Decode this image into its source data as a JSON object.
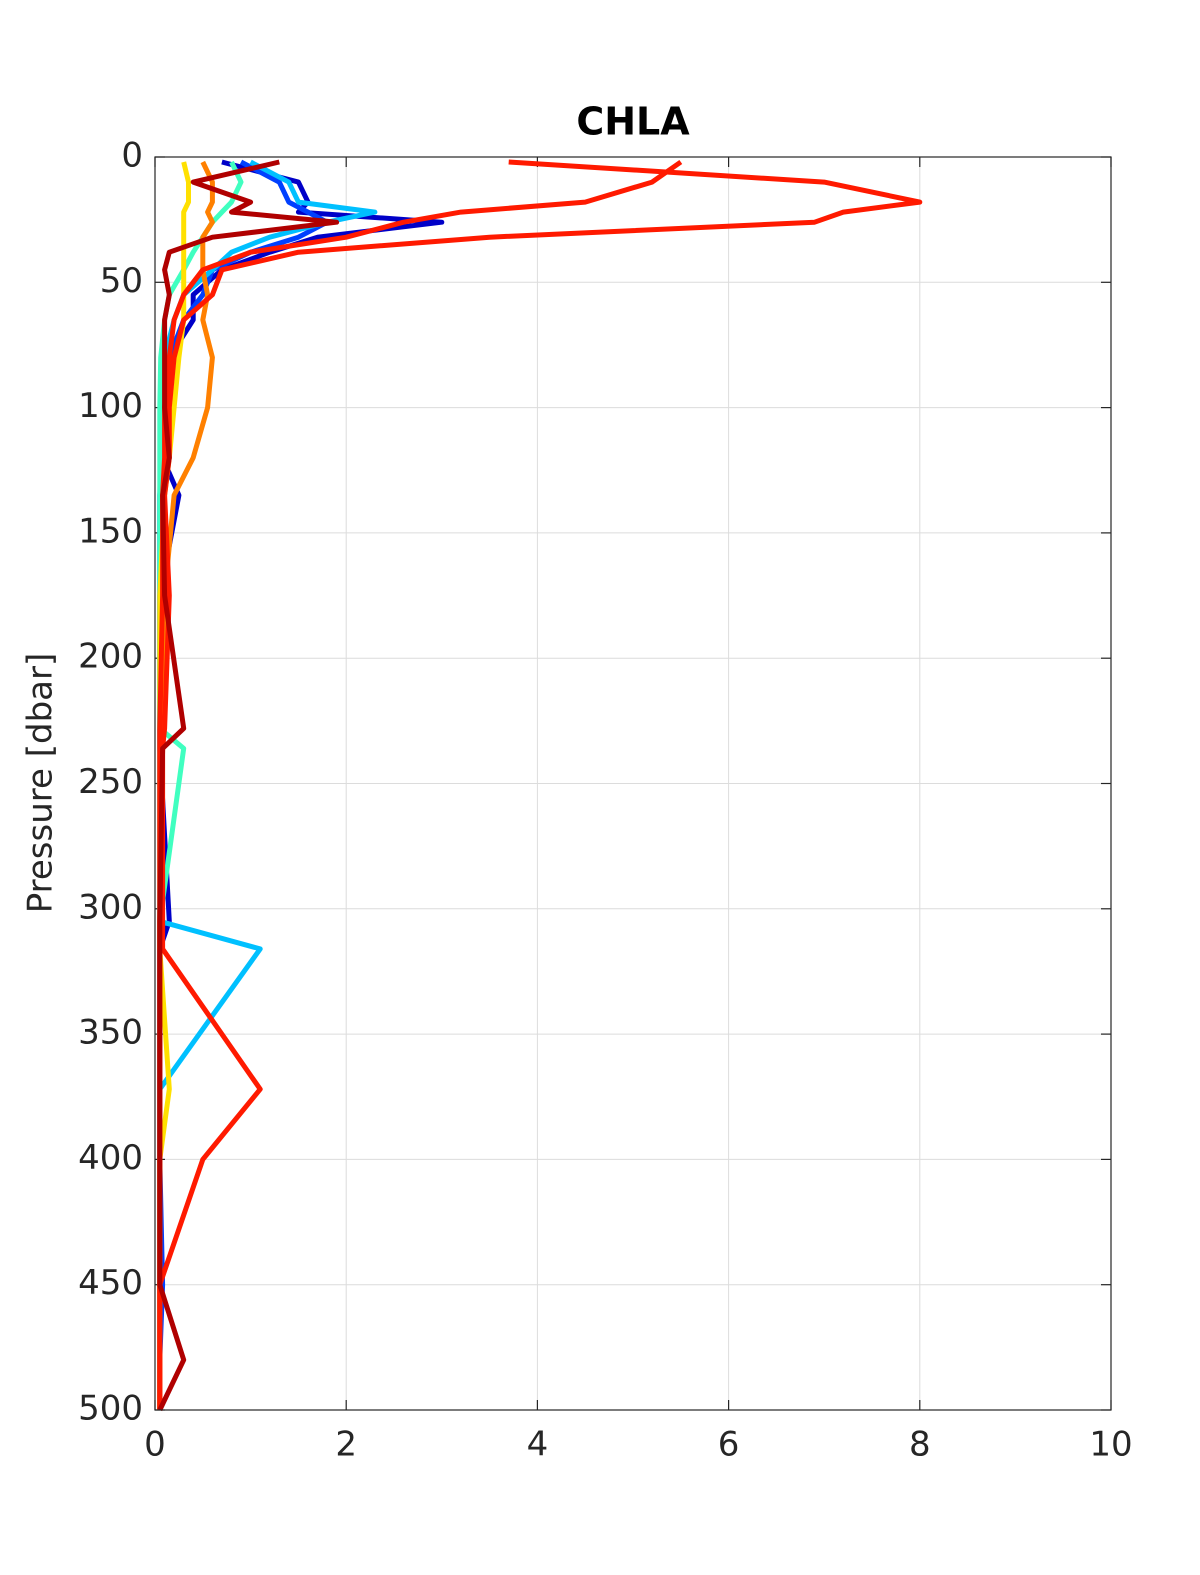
{
  "chart_data": {
    "type": "line",
    "title": "CHLA",
    "ylabel": "Pressure [dbar]",
    "xlim": [
      0,
      10
    ],
    "xticks": [
      0,
      2,
      4,
      6,
      8,
      10
    ],
    "ylim": [
      0,
      500
    ],
    "yticks": [
      0,
      50,
      100,
      150,
      200,
      250,
      300,
      350,
      400,
      450,
      500
    ],
    "y_reversed": true,
    "grid": true,
    "pressure": [
      2,
      10,
      18,
      22,
      26,
      32,
      38,
      45,
      55,
      65,
      80,
      100,
      120,
      135,
      175,
      228,
      236,
      305,
      316,
      372,
      400,
      450,
      480,
      500
    ],
    "series": [
      {
        "color": "#0000c8",
        "values": [
          0.7,
          1.5,
          1.6,
          1.5,
          3.0,
          1.7,
          1.2,
          0.7,
          0.4,
          0.4,
          0.15,
          0.1,
          0.08,
          0.25,
          0.05,
          0.05,
          0.05,
          0.15,
          0.05,
          0.05,
          0.05,
          0.05,
          0.05,
          0.05
        ]
      },
      {
        "color": "#0040ff",
        "values": [
          0.9,
          1.3,
          1.4,
          1.6,
          1.8,
          1.5,
          1.0,
          0.6,
          0.5,
          0.3,
          0.15,
          0.1,
          0.08,
          0.05,
          0.05,
          0.05,
          0.05,
          0.05,
          0.05,
          0.05,
          0.05,
          0.08,
          0.05,
          0.05
        ]
      },
      {
        "color": "#00c0ff",
        "values": [
          1.0,
          1.4,
          1.5,
          2.3,
          1.8,
          1.2,
          0.8,
          0.6,
          0.3,
          0.2,
          0.1,
          0.08,
          0.06,
          0.05,
          0.05,
          0.05,
          0.05,
          0.05,
          1.1,
          0.05,
          0.05,
          0.05,
          0.05,
          0.05
        ]
      },
      {
        "color": "#40ffc0",
        "values": [
          0.8,
          0.9,
          0.8,
          0.7,
          0.6,
          0.5,
          0.4,
          0.3,
          0.15,
          0.1,
          0.06,
          0.05,
          0.05,
          0.05,
          0.05,
          0.05,
          0.3,
          0.05,
          0.05,
          0.05,
          0.05,
          0.05,
          0.05,
          0.05
        ]
      },
      {
        "color": "#ffe000",
        "values": [
          0.3,
          0.35,
          0.35,
          0.3,
          0.3,
          0.3,
          0.3,
          0.3,
          0.3,
          0.3,
          0.25,
          0.2,
          0.15,
          0.1,
          0.05,
          0.05,
          0.05,
          0.05,
          0.05,
          0.15,
          0.05,
          0.05,
          0.05,
          0.05
        ]
      },
      {
        "color": "#ff8000",
        "values": [
          0.5,
          0.6,
          0.6,
          0.55,
          0.6,
          0.5,
          0.5,
          0.5,
          0.55,
          0.5,
          0.6,
          0.55,
          0.4,
          0.2,
          0.1,
          0.08,
          0.08,
          0.05,
          0.05,
          0.05,
          0.05,
          0.05,
          0.05,
          0.05
        ]
      },
      {
        "color": "#ff1a00",
        "values": [
          3.7,
          7.0,
          8.0,
          7.2,
          6.9,
          3.5,
          1.5,
          0.7,
          0.6,
          0.3,
          0.2,
          0.15,
          0.15,
          0.1,
          0.15,
          0.1,
          0.08,
          0.08,
          0.08,
          1.1,
          0.5,
          0.05,
          0.05,
          0.05
        ]
      },
      {
        "color": "#ff1a00",
        "values": [
          5.5,
          5.2,
          4.5,
          3.2,
          2.6,
          2.0,
          1.0,
          0.5,
          0.3,
          0.2,
          0.15,
          0.1,
          0.1,
          0.08,
          0.08,
          0.05,
          0.05,
          0.05,
          0.05,
          0.05,
          0.05,
          0.05,
          0.05,
          0.05
        ]
      },
      {
        "color": "#b00000",
        "values": [
          1.3,
          0.4,
          1.0,
          0.8,
          1.9,
          0.6,
          0.15,
          0.1,
          0.15,
          0.1,
          0.1,
          0.1,
          0.15,
          0.08,
          0.1,
          0.3,
          0.08,
          0.05,
          0.05,
          0.05,
          0.05,
          0.05,
          0.3,
          0.05
        ]
      }
    ]
  }
}
